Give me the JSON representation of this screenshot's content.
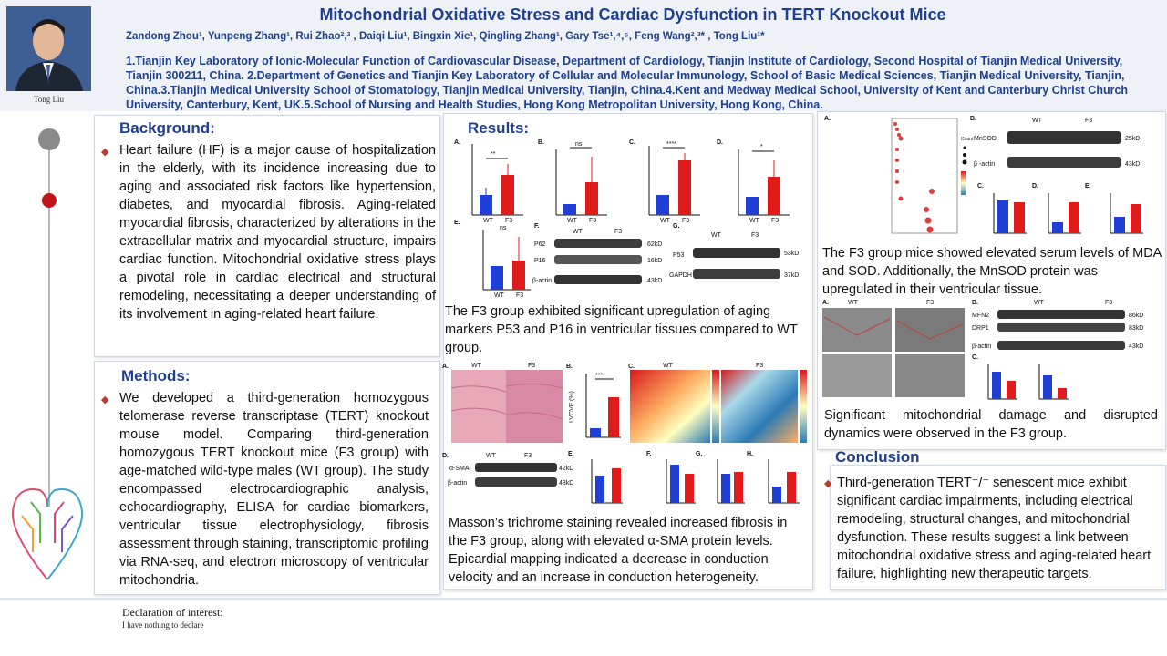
{
  "header": {
    "title": "Mitochondrial Oxidative Stress and Cardiac Dysfunction in TERT Knockout Mice",
    "authors": "Zandong Zhou¹, Yunpeng Zhang¹, Rui Zhao²,³ , Daiqi Liu¹,  Bingxin Xie¹,  Qingling Zhang¹,  Gary Tse¹,⁴,⁵, Feng Wang²,³* , Tong Liu¹*",
    "affiliations": "1.Tianjin Key Laboratory of Ionic-Molecular Function of Cardiovascular Disease, Department of Cardiology, Tianjin Institute of Cardiology, Second Hospital of Tianjin Medical University, Tianjin 300211, China. 2.Department of Genetics and Tianjin Key Laboratory of Cellular and Molecular Immunology, School of Basic Medical Sciences, Tianjin Medical University, Tianjin, China.3.Tianjin Medical University School of Stomatology, Tianjin Medical University, Tianjin, China.4.Kent and Medway Medical School, University of Kent and Canterbury Christ Church University, Canterbury, Kent, UK.5.School of Nursing and Health Studies, Hong Kong Metropolitan University, Hong Kong, China.",
    "photo_caption": "Tong Liu"
  },
  "background": {
    "title": "Background:",
    "text": "Heart failure (HF) is a major cause of hospitalization in the elderly, with its incidence increasing due to aging and associated risk factors like hypertension, diabetes, and myocardial fibrosis. Aging-related myocardial fibrosis, characterized by alterations in the extracellular matrix and myocardial structure, impairs cardiac function. Mitochondrial oxidative stress plays a pivotal role in cardiac electrical and structural remodeling, necessitating a deeper understanding of its involvement in aging-related heart failure."
  },
  "methods": {
    "title": "Methods:",
    "text": "We developed a third-generation homozygous telomerase reverse transcriptase (TERT) knockout mouse model. Comparing third-generation homozygous TERT knockout mice (F3 group) with age-matched wild-type males (WT group). The study encompassed electrocardiographic analysis, echocardiography, ELISA for cardiac biomarkers, ventricular tissue electrophysiology, fibrosis assessment through staining, transcriptomic profiling via RNA-seq, and electron microscopy of ventricular mitochondria."
  },
  "results": {
    "title": "Results:",
    "caption1": "The F3 group exhibited significant upregulation of aging markers P53 and P16 in ventricular tissues compared to WT group.",
    "caption2": "Masson’s trichrome staining revealed increased fibrosis in the F3 group, along with elevated α-SMA protein levels. Epicardial mapping indicated a decrease in conduction velocity and an increase in conduction heterogeneity.",
    "caption3": "The F3 group mice showed elevated serum levels of MDA and SOD. Additionally, the MnSOD protein was upregulated in their ventricular tissue.",
    "caption4": "Significant mitochondrial damage and disrupted dynamics were observed in the F3 group."
  },
  "conclusion": {
    "title": "Conclusion",
    "text": "Third-generation TERT⁻/⁻ senescent mice exhibit significant cardiac impairments, including electrical remodeling, structural changes, and mitochondrial dysfunction.  These results suggest a link between mitochondrial oxidative stress and aging-related heart failure, highlighting new therapeutic targets."
  },
  "figure_labels": {
    "wt": "WT",
    "f3": "F3",
    "p53": "P53",
    "p16": "P16",
    "p62": "P62",
    "bactin": "β-actin",
    "gapdh": "GAPDH",
    "mnsod": "MnSOD",
    "asma": "α-SMA",
    "mfn2": "MFN2",
    "drp1": "DRP1",
    "kd62": "62kD",
    "kd16": "16kD",
    "kd43": "43kD",
    "kd53": "53kD",
    "kd37": "37kD",
    "kd25": "25kD",
    "kd42": "42kD",
    "kd86": "86kD",
    "kd83": "83kD",
    "panel_a": "A.",
    "panel_b": "B.",
    "panel_c": "C.",
    "panel_d": "D.",
    "panel_e": "E.",
    "panel_f": "F.",
    "panel_g": "G."
  },
  "colors": {
    "wt_bar": "#1f3fd6",
    "f3_bar": "#e01b1b",
    "title_blue": "#1f3f8f",
    "bullet_red": "#c0392b"
  },
  "declaration": {
    "title": "Declaration of interest:",
    "text": "I have nothing to declare"
  }
}
